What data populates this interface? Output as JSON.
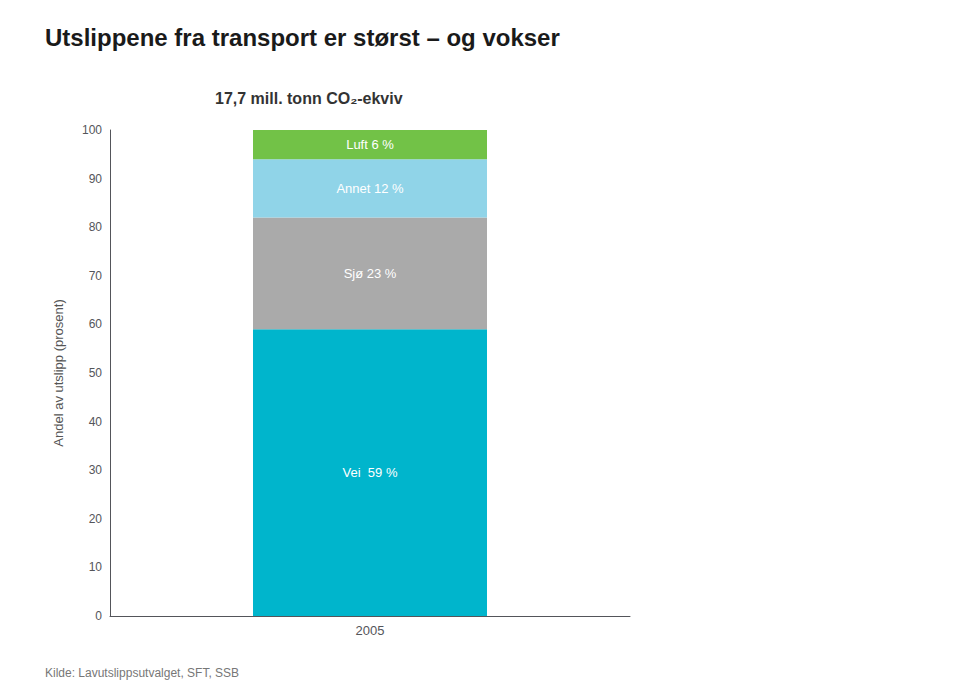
{
  "chart_data": {
    "type": "bar",
    "title": "Utslippene fra transport er størst – og vokser",
    "subtitle": "17,7 mill. tonn CO₂-ekviv",
    "ylabel": "Andel av utslipp (prosent)",
    "annotations": [
      "Kilde: Lavutslippsutvalget, SFT, SSB"
    ],
    "categories": [
      "2005"
    ],
    "series": [
      {
        "name": "Vei  59 %",
        "color": "#00B5CC",
        "values": [
          59
        ],
        "value_labels": [
          "Vei  59 %"
        ]
      },
      {
        "name": "Sjø 23 %",
        "color": "#AAAAAA",
        "values": [
          23
        ],
        "value_labels": [
          "Sjø 23 %"
        ]
      },
      {
        "name": "Annet 12 %",
        "color": "#90D4E8",
        "values": [
          12
        ],
        "value_labels": [
          "Annet 12 %"
        ]
      },
      {
        "name": "Luft 6 %",
        "color": "#72C247",
        "values": [
          6
        ],
        "value_labels": [
          "Luft 6 %"
        ]
      }
    ],
    "stacked": true,
    "data_labels": true,
    "ylim": [
      0,
      100
    ],
    "yticks": [
      0,
      10,
      20,
      30,
      40,
      50,
      60,
      70,
      80,
      90,
      100
    ],
    "grid": false
  }
}
